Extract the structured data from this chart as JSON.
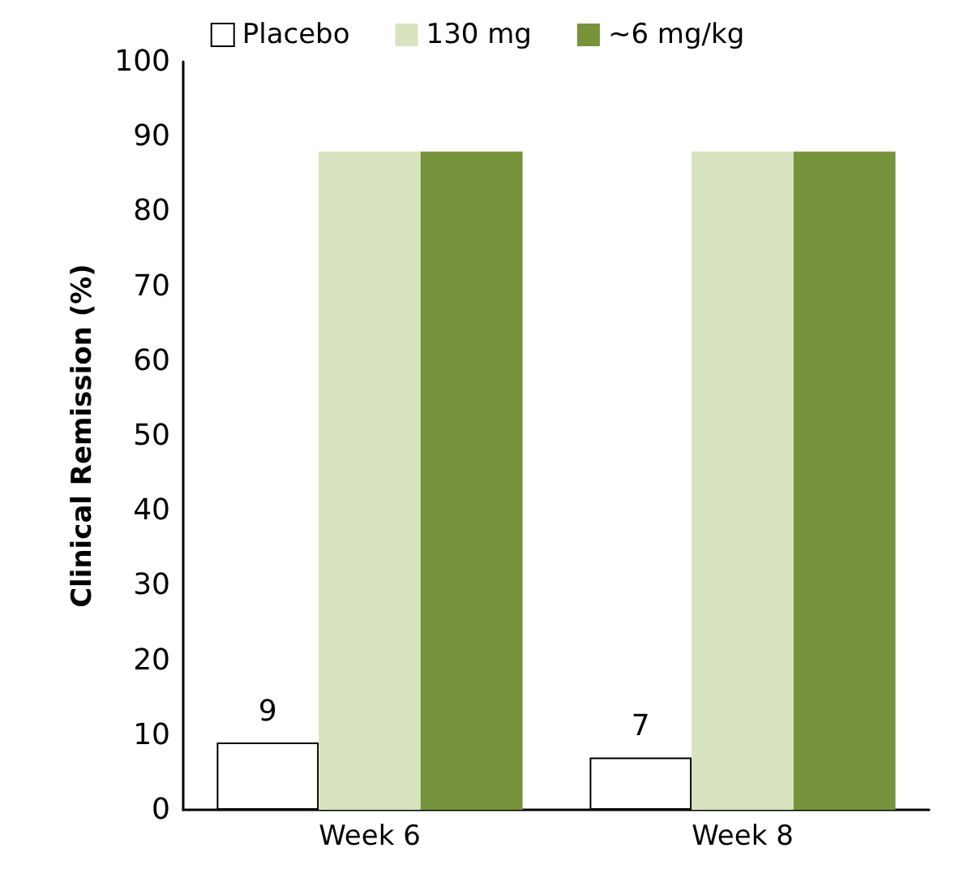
{
  "chart_data": {
    "type": "bar",
    "ylabel": "Clinical Remission (%)",
    "categories": [
      "Week 6",
      "Week 8"
    ],
    "series": [
      {
        "name": "Placebo",
        "color": "#ffffff",
        "values": [
          9,
          7
        ],
        "value_labels": [
          "9",
          "7"
        ]
      },
      {
        "name": "130 mg",
        "color": "#d8e4bf",
        "values": [
          88,
          88
        ]
      },
      {
        "name": "~6 mg/kg",
        "color": "#77933c",
        "values": [
          88,
          88
        ]
      }
    ],
    "ylim": [
      0,
      100
    ],
    "yticks": [
      0,
      10,
      20,
      30,
      40,
      50,
      60,
      70,
      80,
      90,
      100
    ],
    "grid": false,
    "legend": "top"
  }
}
